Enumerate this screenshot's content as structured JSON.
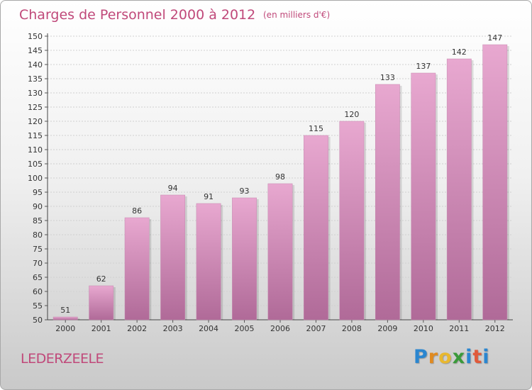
{
  "chart_data": {
    "type": "bar",
    "title": "Charges de Personnel 2000 à 2012",
    "subtitle": "(en milliers d'€)",
    "categories": [
      "2000",
      "2001",
      "2002",
      "2003",
      "2004",
      "2005",
      "2006",
      "2007",
      "2008",
      "2009",
      "2010",
      "2011",
      "2012"
    ],
    "values": [
      51,
      62,
      86,
      94,
      91,
      93,
      98,
      115,
      120,
      133,
      137,
      142,
      147
    ],
    "ylim": [
      50,
      150
    ],
    "yticks": [
      50,
      55,
      60,
      65,
      70,
      75,
      80,
      85,
      90,
      95,
      100,
      105,
      110,
      115,
      120,
      125,
      130,
      135,
      140,
      145,
      150
    ],
    "grid": true,
    "bar_color_top": "#e8a8d0",
    "bar_color_bottom": "#b06a98"
  },
  "commune": "LEDERZEELE",
  "logo": {
    "letters": [
      "P",
      "r",
      "o",
      "x",
      "i",
      "t",
      "i"
    ],
    "colors": [
      "#2a86d0",
      "#e08a20",
      "#e8b830",
      "#3a9a3a",
      "#2a86d0",
      "#e05a3a",
      "#2a86d0"
    ]
  }
}
